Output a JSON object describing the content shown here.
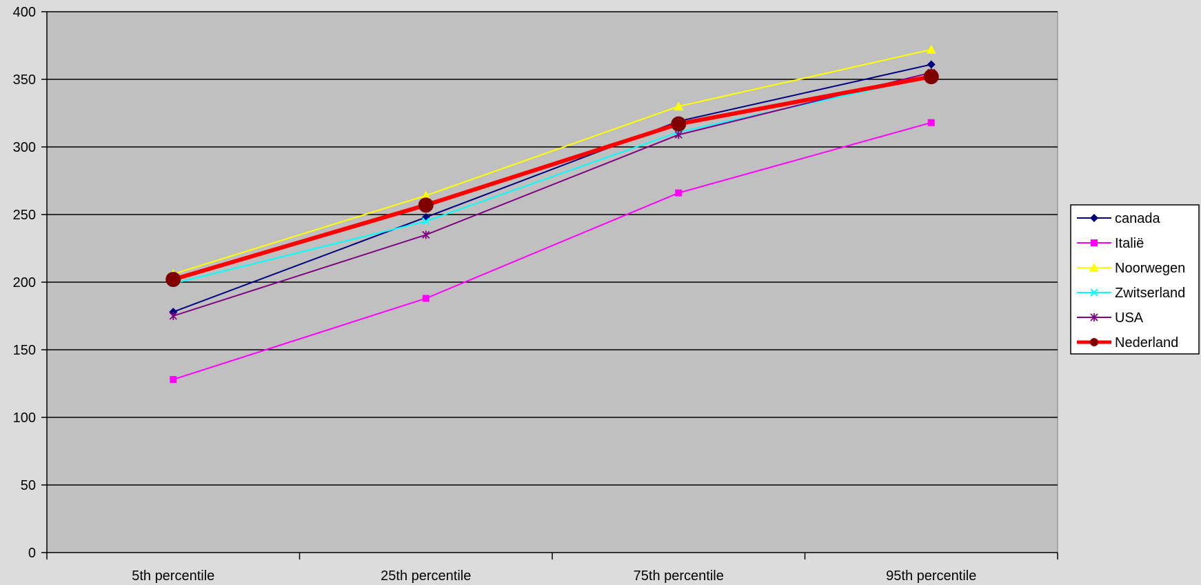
{
  "chart_data": {
    "type": "line",
    "title": "",
    "xlabel": "",
    "ylabel": "",
    "categories": [
      "5th percentile",
      "25th percentile",
      "75th percentile",
      "95th percentile"
    ],
    "ylim": [
      0,
      400
    ],
    "yticks": [
      0,
      50,
      100,
      150,
      200,
      250,
      300,
      350,
      400
    ],
    "grid": true,
    "legend_position": "right",
    "plot_background": "#c0c0c0",
    "page_background": "#dcdcdc",
    "series": [
      {
        "name": "canada",
        "values": [
          178,
          248,
          319,
          361
        ],
        "color": "#000080",
        "marker": "diamond",
        "emphasis": false
      },
      {
        "name": "Italië",
        "values": [
          128,
          188,
          266,
          318
        ],
        "color": "#ff00ff",
        "marker": "square",
        "emphasis": false
      },
      {
        "name": "Noorwegen",
        "values": [
          206,
          264,
          330,
          372
        ],
        "color": "#ffff00",
        "marker": "triangle",
        "emphasis": false
      },
      {
        "name": "Zwitserland",
        "values": [
          199,
          245,
          311,
          352
        ],
        "color": "#00ffff",
        "marker": "x",
        "emphasis": false
      },
      {
        "name": "USA",
        "values": [
          175,
          235,
          309,
          355
        ],
        "color": "#800080",
        "marker": "asterisk",
        "emphasis": false
      },
      {
        "name": "Nederland",
        "values": [
          202,
          257,
          317,
          352
        ],
        "color": "#ff0000",
        "marker_color": "#800000",
        "marker": "circle",
        "emphasis": true
      }
    ]
  }
}
